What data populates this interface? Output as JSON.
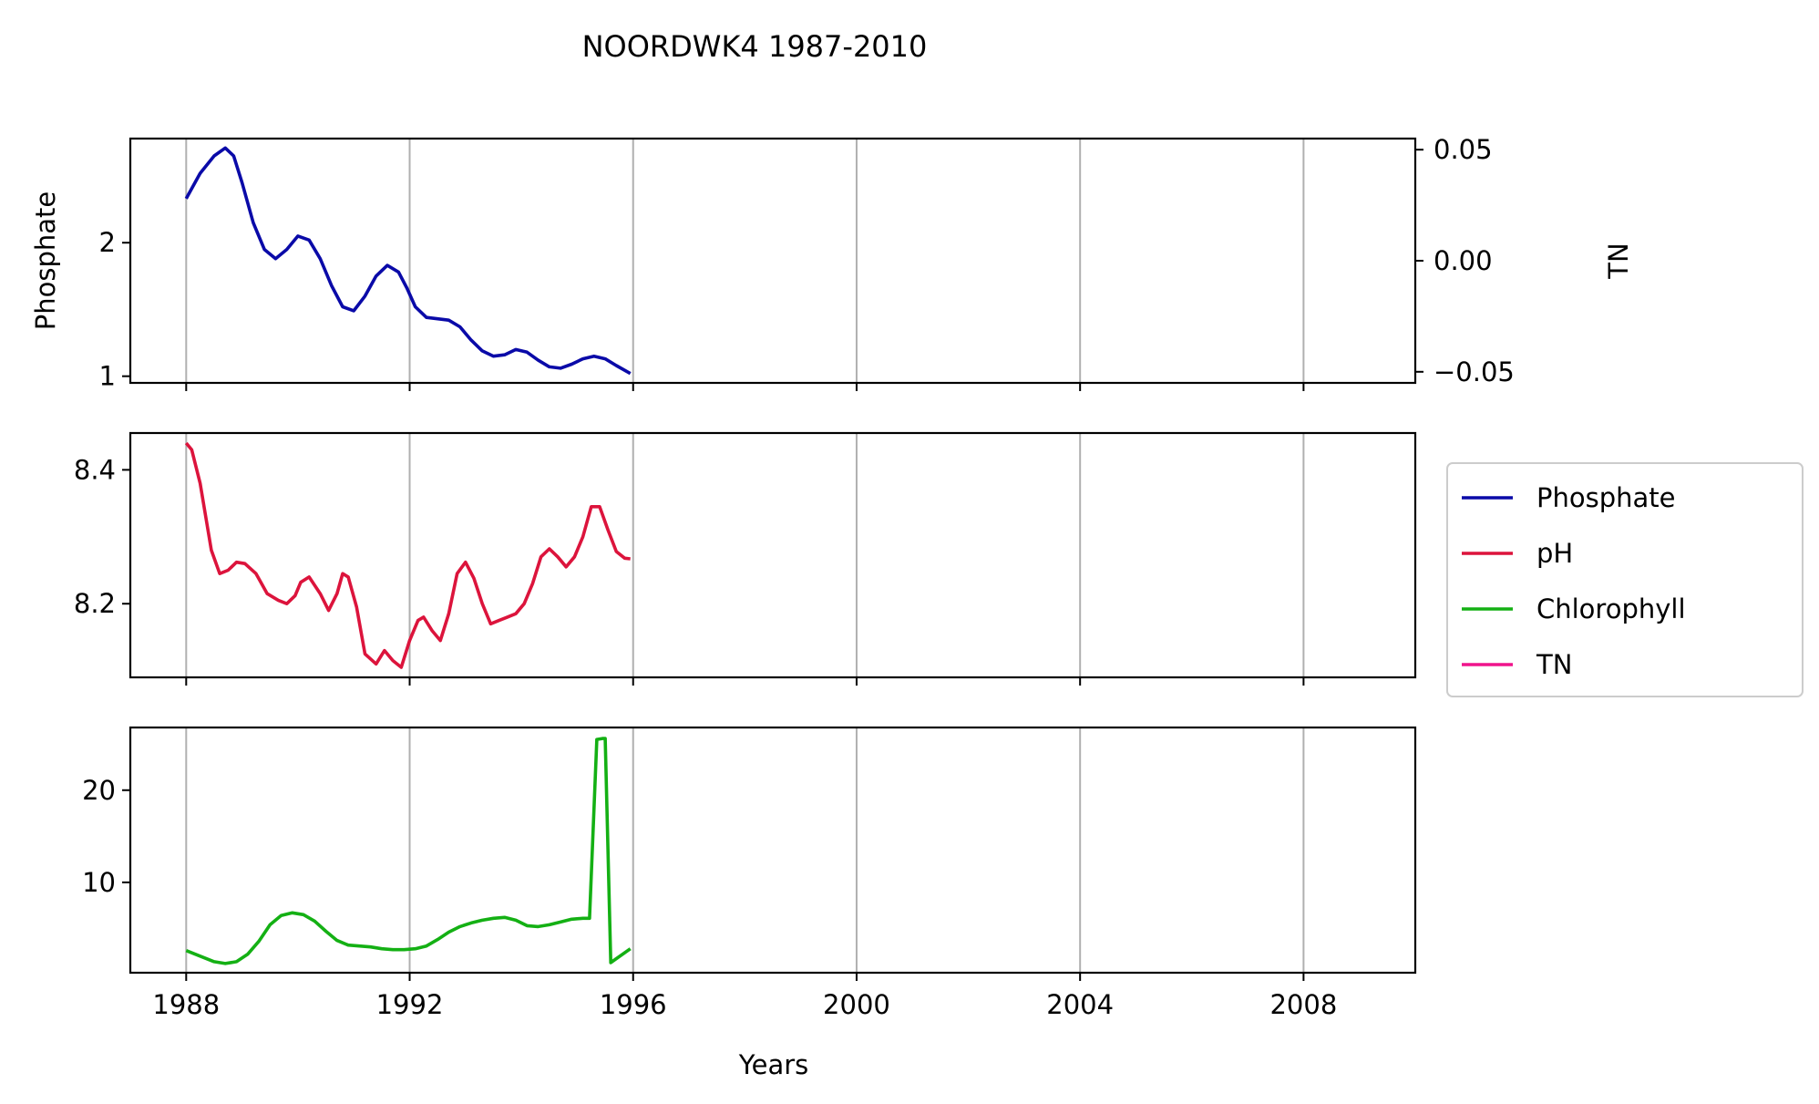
{
  "chart_data": {
    "type": "line",
    "title": "NOORDWK4 1987-2010",
    "xlabel": "Years",
    "x_ticks": [
      "1988",
      "1992",
      "1996",
      "2000",
      "2004",
      "2008"
    ],
    "xlim": [
      1987.0,
      2010.0
    ],
    "grid": "vertical",
    "legend_position": "right",
    "legend": [
      "Phosphate",
      "pH",
      "Chlorophyll",
      "TN"
    ],
    "colors": {
      "Phosphate": "#0a0aa8",
      "pH": "#dc143c",
      "Chlorophyll": "#14b014",
      "TN": "#f0148c"
    },
    "panels": [
      {
        "ylabel": "Phosphate",
        "ylim": [
          0.95,
          2.78
        ],
        "y_ticks": [
          "1",
          "2"
        ],
        "y_tick_values": [
          1,
          2
        ],
        "secondary_axis": {
          "ylabel": "TN",
          "ylim": [
            -0.055,
            0.055
          ],
          "y_ticks": [
            "0.05",
            "0.00",
            "−0.05"
          ],
          "y_tick_values": [
            0.05,
            0.0,
            -0.05
          ]
        },
        "series": [
          {
            "name": "Phosphate",
            "x": [
              1988.0,
              1988.25,
              1988.5,
              1988.7,
              1988.85,
              1989.0,
              1989.2,
              1989.4,
              1989.6,
              1989.8,
              1990.0,
              1990.2,
              1990.4,
              1990.6,
              1990.8,
              1991.0,
              1991.2,
              1991.4,
              1991.6,
              1991.8,
              1991.95,
              1992.1,
              1992.3,
              1992.5,
              1992.7,
              1992.9,
              1993.1,
              1993.3,
              1993.5,
              1993.7,
              1993.9,
              1994.1,
              1994.3,
              1994.5,
              1994.7,
              1994.9,
              1995.1,
              1995.3,
              1995.5,
              1995.7,
              1995.95
            ],
            "values": [
              2.33,
              2.52,
              2.65,
              2.71,
              2.65,
              2.45,
              2.15,
              1.95,
              1.88,
              1.95,
              2.05,
              2.02,
              1.88,
              1.68,
              1.52,
              1.49,
              1.6,
              1.75,
              1.83,
              1.78,
              1.66,
              1.52,
              1.44,
              1.43,
              1.42,
              1.37,
              1.27,
              1.19,
              1.15,
              1.16,
              1.2,
              1.18,
              1.12,
              1.07,
              1.06,
              1.09,
              1.13,
              1.15,
              1.13,
              1.08,
              1.02
            ]
          }
        ]
      },
      {
        "ylabel": "",
        "ylim": [
          8.09,
          8.455
        ],
        "y_ticks": [
          "8.2",
          "8.4"
        ],
        "y_tick_values": [
          8.2,
          8.4
        ],
        "series": [
          {
            "name": "pH",
            "x": [
              1988.0,
              1988.1,
              1988.25,
              1988.45,
              1988.6,
              1988.75,
              1988.9,
              1989.05,
              1989.25,
              1989.45,
              1989.65,
              1989.8,
              1989.95,
              1990.05,
              1990.2,
              1990.4,
              1990.55,
              1990.7,
              1990.8,
              1990.9,
              1991.05,
              1991.2,
              1991.4,
              1991.55,
              1991.7,
              1991.85,
              1992.0,
              1992.15,
              1992.25,
              1992.4,
              1992.55,
              1992.7,
              1992.85,
              1993.0,
              1993.15,
              1993.3,
              1993.45,
              1993.6,
              1993.75,
              1993.9,
              1994.05,
              1994.2,
              1994.35,
              1994.5,
              1994.65,
              1994.8,
              1994.95,
              1995.1,
              1995.25,
              1995.4,
              1995.55,
              1995.7,
              1995.85,
              1995.95
            ],
            "values": [
              8.44,
              8.43,
              8.38,
              8.28,
              8.245,
              8.25,
              8.262,
              8.26,
              8.245,
              8.215,
              8.205,
              8.2,
              8.212,
              8.232,
              8.24,
              8.215,
              8.19,
              8.215,
              8.245,
              8.24,
              8.195,
              8.125,
              8.11,
              8.13,
              8.115,
              8.105,
              8.145,
              8.175,
              8.18,
              8.16,
              8.145,
              8.185,
              8.245,
              8.262,
              8.238,
              8.2,
              8.17,
              8.175,
              8.18,
              8.185,
              8.2,
              8.23,
              8.27,
              8.282,
              8.27,
              8.255,
              8.27,
              8.3,
              8.345,
              8.345,
              8.31,
              8.278,
              8.268,
              8.267
            ]
          }
        ]
      },
      {
        "ylabel": "",
        "ylim": [
          0.2,
          26.8
        ],
        "y_ticks": [
          "10",
          "20"
        ],
        "y_tick_values": [
          10,
          20
        ],
        "series": [
          {
            "name": "Chlorophyll",
            "x": [
              1988.0,
              1988.25,
              1988.5,
              1988.7,
              1988.9,
              1989.1,
              1989.3,
              1989.5,
              1989.7,
              1989.9,
              1990.1,
              1990.3,
              1990.5,
              1990.7,
              1990.9,
              1991.1,
              1991.3,
              1991.5,
              1991.7,
              1991.9,
              1992.1,
              1992.3,
              1992.5,
              1992.7,
              1992.9,
              1993.1,
              1993.3,
              1993.5,
              1993.7,
              1993.9,
              1994.1,
              1994.3,
              1994.5,
              1994.7,
              1994.9,
              1995.1,
              1995.2,
              1995.22,
              1995.35,
              1995.45,
              1995.5,
              1995.6,
              1995.95
            ],
            "values": [
              2.6,
              2.0,
              1.4,
              1.2,
              1.4,
              2.2,
              3.6,
              5.4,
              6.4,
              6.7,
              6.5,
              5.8,
              4.7,
              3.7,
              3.2,
              3.1,
              3.0,
              2.8,
              2.7,
              2.7,
              2.8,
              3.1,
              3.8,
              4.6,
              5.2,
              5.6,
              5.9,
              6.1,
              6.2,
              5.9,
              5.3,
              5.2,
              5.4,
              5.7,
              6.0,
              6.1,
              6.1,
              6.1,
              25.5,
              25.6,
              25.6,
              1.3,
              2.8
            ]
          }
        ]
      }
    ]
  }
}
